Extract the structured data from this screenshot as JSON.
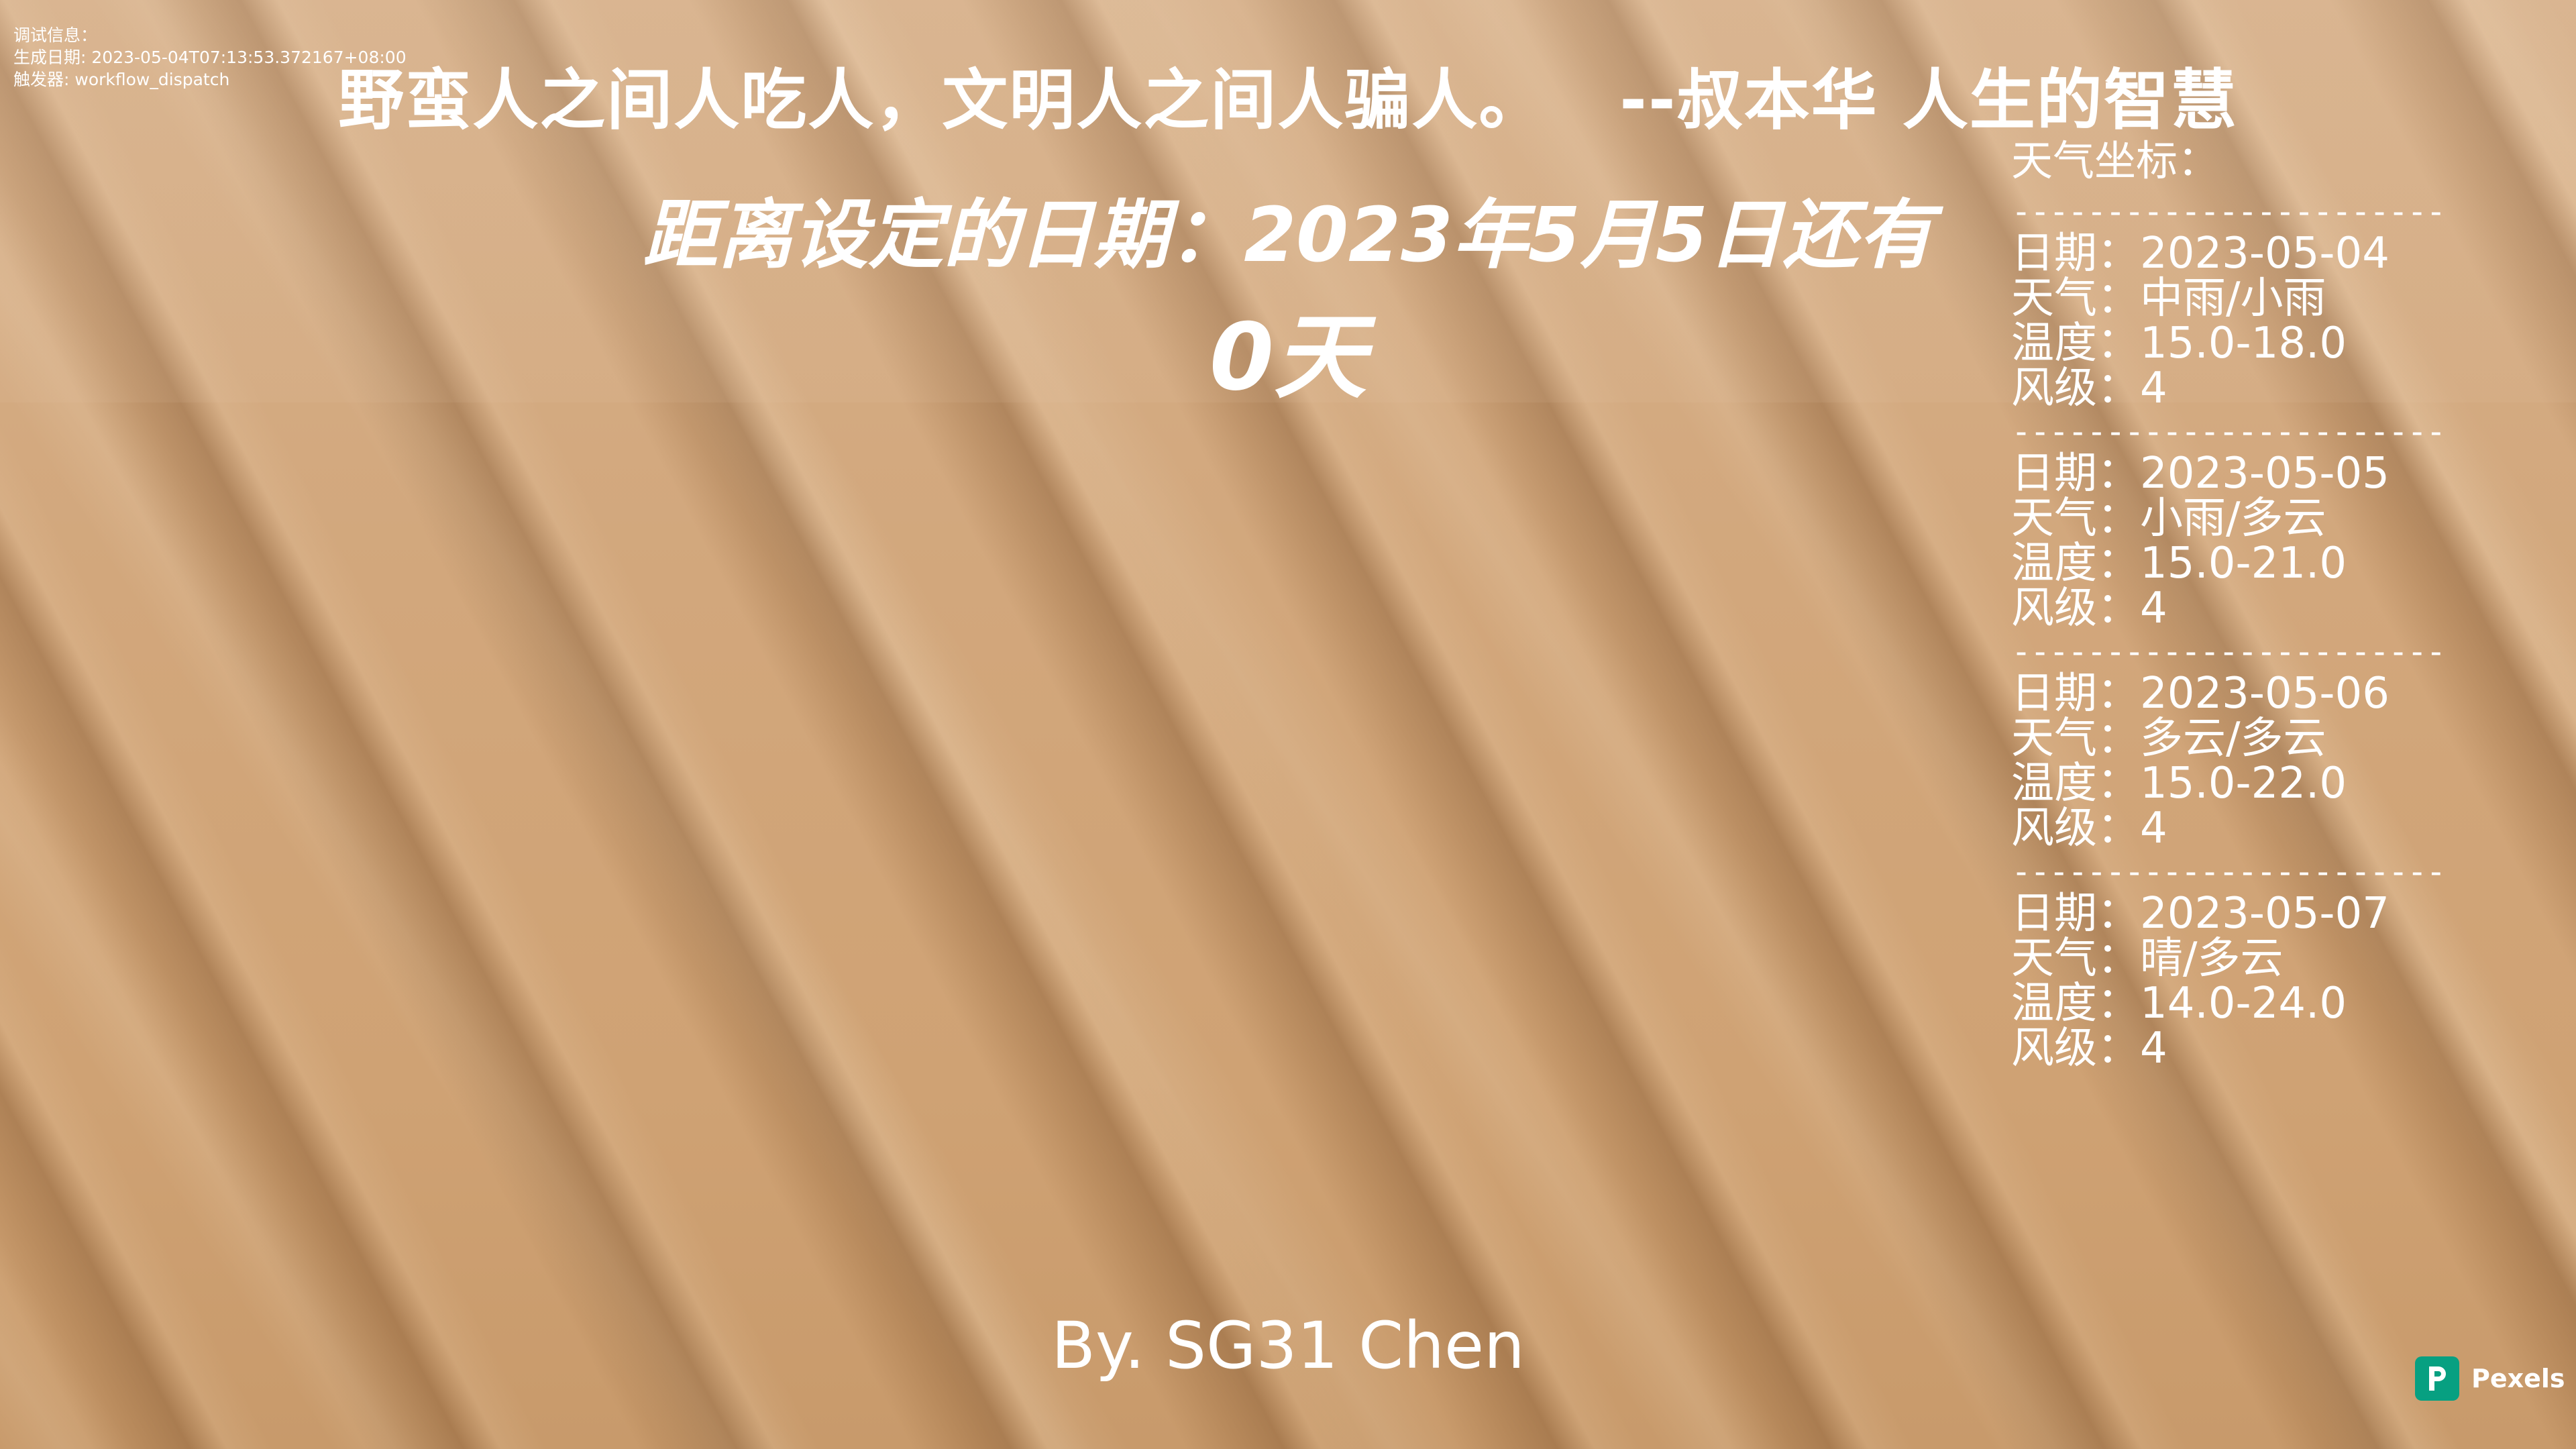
{
  "debug": {
    "label": "调试信息：",
    "generated_label": "生成日期:",
    "generated_value": "2023-05-04T07:13:53.372167+08:00",
    "trigger_label": "触发器:",
    "trigger_value": "workflow_dispatch"
  },
  "quote": {
    "text": "野蛮人之间人吃人，文明人之间人骗人。",
    "source": "--叔本华 人生的智慧"
  },
  "countdown": {
    "label": "距离设定的日期：2023年5月5日还有",
    "days": "0天"
  },
  "weather": {
    "title": "天气坐标：",
    "separator": "----------------------------------",
    "date_label": "日期",
    "weather_label": "天气",
    "temp_label": "温度",
    "wind_label": "风级",
    "days": [
      {
        "date": "2023-05-04",
        "weather": "中雨/小雨",
        "temp": "15.0-18.0",
        "wind": "4"
      },
      {
        "date": "2023-05-05",
        "weather": "小雨/多云",
        "temp": "15.0-21.0",
        "wind": "4"
      },
      {
        "date": "2023-05-06",
        "weather": "多云/多云",
        "temp": "15.0-22.0",
        "wind": "4"
      },
      {
        "date": "2023-05-07",
        "weather": "晴/多云",
        "temp": "14.0-24.0",
        "wind": "4"
      }
    ]
  },
  "author": "By. SG31 Chen",
  "watermark": {
    "brand": "Pexels",
    "color": "#07a081",
    "icon": "pexels-logo-icon"
  }
}
